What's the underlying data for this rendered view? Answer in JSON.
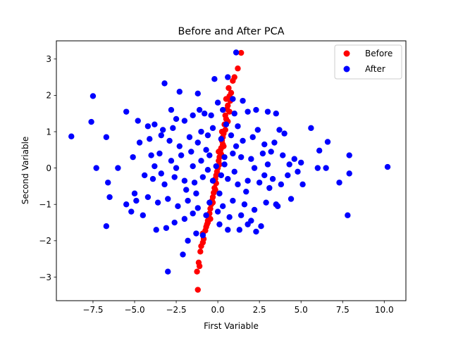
{
  "chart_data": {
    "type": "scatter",
    "title": "Before and After PCA",
    "xlabel": "First Variable",
    "ylabel": "Second Variable",
    "xlim": [
      -9.7,
      11.3
    ],
    "ylim": [
      -3.65,
      3.5
    ],
    "xticks": [
      -7.5,
      -5.0,
      -2.5,
      0.0,
      2.5,
      5.0,
      7.5,
      10.0
    ],
    "xtick_labels": [
      "−7.5",
      "−5.0",
      "−2.5",
      "0.0",
      "2.5",
      "5.0",
      "7.5",
      "10.0"
    ],
    "yticks": [
      -3,
      -2,
      -1,
      0,
      1,
      2,
      3
    ],
    "ytick_labels": [
      "−3",
      "−2",
      "−1",
      "0",
      "1",
      "2",
      "3"
    ],
    "grid": false,
    "legend_position": "top-right",
    "series": [
      {
        "name": "Before",
        "color": "#ff0000",
        "points": [
          [
            1.4,
            3.17
          ],
          [
            1.2,
            2.74
          ],
          [
            1.0,
            2.5
          ],
          [
            0.9,
            2.4
          ],
          [
            0.8,
            2.07
          ],
          [
            0.7,
            1.98
          ],
          [
            0.75,
            1.85
          ],
          [
            0.6,
            1.72
          ],
          [
            0.55,
            1.62
          ],
          [
            0.7,
            1.55
          ],
          [
            0.45,
            1.45
          ],
          [
            0.5,
            1.35
          ],
          [
            0.6,
            1.28
          ],
          [
            0.4,
            1.2
          ],
          [
            0.45,
            1.05
          ],
          [
            0.35,
            0.95
          ],
          [
            0.3,
            0.85
          ],
          [
            0.25,
            0.75
          ],
          [
            0.3,
            0.65
          ],
          [
            0.2,
            0.55
          ],
          [
            0.15,
            0.48
          ],
          [
            0.2,
            0.38
          ],
          [
            0.1,
            0.3
          ],
          [
            0.05,
            0.2
          ],
          [
            0.1,
            0.1
          ],
          [
            0.0,
            0.0
          ],
          [
            -0.05,
            -0.1
          ],
          [
            -0.1,
            -0.2
          ],
          [
            -0.15,
            -0.3
          ],
          [
            -0.1,
            -0.42
          ],
          [
            -0.2,
            -0.55
          ],
          [
            -0.25,
            -0.68
          ],
          [
            -0.3,
            -0.8
          ],
          [
            -0.35,
            -0.9
          ],
          [
            -0.4,
            -1.0
          ],
          [
            -0.45,
            -1.12
          ],
          [
            -0.5,
            -1.25
          ],
          [
            -0.55,
            -1.35
          ],
          [
            -0.6,
            -1.45
          ],
          [
            -0.65,
            -1.55
          ],
          [
            -0.7,
            -1.62
          ],
          [
            -0.75,
            -1.72
          ],
          [
            -0.9,
            -1.8
          ],
          [
            -0.85,
            -1.95
          ],
          [
            -0.9,
            -2.05
          ],
          [
            -1.0,
            -2.15
          ],
          [
            -1.05,
            -2.3
          ],
          [
            -1.15,
            -2.6
          ],
          [
            -1.1,
            -2.7
          ],
          [
            -1.25,
            -2.85
          ],
          [
            -1.2,
            -3.35
          ],
          [
            0.5,
            1.9
          ],
          [
            0.65,
            2.2
          ],
          [
            0.35,
            0.6
          ],
          [
            -0.3,
            -0.95
          ],
          [
            -0.6,
            -1.5
          ],
          [
            0.05,
            0.45
          ],
          [
            -0.45,
            -1.4
          ],
          [
            0.25,
            1.0
          ],
          [
            -0.15,
            -0.6
          ]
        ]
      },
      {
        "name": "After",
        "color": "#0000ff",
        "points": [
          [
            1.1,
            3.18
          ],
          [
            0.6,
            2.5
          ],
          [
            -0.2,
            2.45
          ],
          [
            -7.5,
            1.98
          ],
          [
            -3.2,
            2.33
          ],
          [
            -1.2,
            2.05
          ],
          [
            -2.3,
            2.1
          ],
          [
            0.0,
            1.8
          ],
          [
            1.5,
            1.85
          ],
          [
            -7.6,
            1.27
          ],
          [
            -8.8,
            0.87
          ],
          [
            -6.7,
            0.85
          ],
          [
            -5.5,
            1.55
          ],
          [
            -4.8,
            1.3
          ],
          [
            -4.2,
            1.15
          ],
          [
            -3.8,
            1.2
          ],
          [
            -3.3,
            1.05
          ],
          [
            -2.8,
            1.6
          ],
          [
            -2.5,
            1.35
          ],
          [
            -2.0,
            1.3
          ],
          [
            -1.5,
            1.45
          ],
          [
            -1.1,
            1.6
          ],
          [
            -0.8,
            1.5
          ],
          [
            -0.4,
            1.45
          ],
          [
            0.3,
            1.6
          ],
          [
            1.0,
            1.5
          ],
          [
            1.8,
            1.55
          ],
          [
            2.3,
            1.6
          ],
          [
            3.0,
            1.55
          ],
          [
            3.5,
            1.5
          ],
          [
            4.0,
            0.95
          ],
          [
            3.7,
            1.05
          ],
          [
            5.6,
            1.1
          ],
          [
            6.6,
            0.72
          ],
          [
            6.1,
            0.48
          ],
          [
            7.9,
            0.35
          ],
          [
            10.2,
            0.03
          ],
          [
            -7.3,
            0.0
          ],
          [
            -6.0,
            0.0
          ],
          [
            -6.6,
            -0.4
          ],
          [
            -6.5,
            -0.8
          ],
          [
            -5.0,
            -0.7
          ],
          [
            -5.5,
            -1.0
          ],
          [
            -5.2,
            -1.2
          ],
          [
            -4.5,
            -1.3
          ],
          [
            -6.7,
            -1.6
          ],
          [
            -3.7,
            -1.7
          ],
          [
            -3.1,
            -1.65
          ],
          [
            -2.6,
            -1.5
          ],
          [
            -1.8,
            -2.0
          ],
          [
            -2.1,
            -2.38
          ],
          [
            -3.0,
            -2.85
          ],
          [
            -1.3,
            -1.8
          ],
          [
            -0.9,
            -1.85
          ],
          [
            0.1,
            -1.55
          ],
          [
            0.6,
            -1.7
          ],
          [
            1.3,
            -1.7
          ],
          [
            1.8,
            -1.55
          ],
          [
            2.3,
            -1.75
          ],
          [
            2.6,
            -1.6
          ],
          [
            3.6,
            -1.05
          ],
          [
            4.4,
            -0.85
          ],
          [
            5.1,
            -0.45
          ],
          [
            6.5,
            0.0
          ],
          [
            6.0,
            0.0
          ],
          [
            7.3,
            -0.4
          ],
          [
            7.9,
            -0.15
          ],
          [
            7.8,
            -1.3
          ],
          [
            -5.1,
            0.3
          ],
          [
            -4.0,
            0.35
          ],
          [
            -3.5,
            0.4
          ],
          [
            -2.8,
            0.2
          ],
          [
            -2.2,
            0.35
          ],
          [
            -1.6,
            0.45
          ],
          [
            -1.0,
            0.2
          ],
          [
            -0.5,
            0.35
          ],
          [
            0.4,
            0.3
          ],
          [
            0.9,
            0.4
          ],
          [
            1.4,
            0.3
          ],
          [
            2.0,
            0.25
          ],
          [
            2.7,
            0.4
          ],
          [
            3.2,
            0.45
          ],
          [
            3.9,
            0.35
          ],
          [
            4.6,
            0.25
          ],
          [
            -4.4,
            -0.2
          ],
          [
            -3.9,
            -0.3
          ],
          [
            -3.2,
            -0.45
          ],
          [
            -2.6,
            -0.25
          ],
          [
            -2.0,
            -0.35
          ],
          [
            -1.4,
            -0.4
          ],
          [
            -0.9,
            -0.25
          ],
          [
            -0.3,
            -0.35
          ],
          [
            0.6,
            -0.3
          ],
          [
            1.2,
            -0.45
          ],
          [
            1.8,
            -0.35
          ],
          [
            2.5,
            -0.4
          ],
          [
            3.1,
            -0.55
          ],
          [
            3.8,
            -0.45
          ],
          [
            4.2,
            -0.2
          ],
          [
            -4.7,
            0.7
          ],
          [
            -4.1,
            0.8
          ],
          [
            -3.4,
            0.9
          ],
          [
            -2.9,
            0.75
          ],
          [
            -2.3,
            0.6
          ],
          [
            -1.7,
            0.85
          ],
          [
            -1.2,
            0.7
          ],
          [
            -0.6,
            0.9
          ],
          [
            0.2,
            0.8
          ],
          [
            0.8,
            0.9
          ],
          [
            1.5,
            0.75
          ],
          [
            2.1,
            0.85
          ],
          [
            2.8,
            0.65
          ],
          [
            3.4,
            0.7
          ],
          [
            -4.9,
            -0.9
          ],
          [
            -4.2,
            -0.8
          ],
          [
            -3.6,
            -0.95
          ],
          [
            -3.0,
            -0.85
          ],
          [
            -2.4,
            -1.05
          ],
          [
            -1.8,
            -0.9
          ],
          [
            -1.2,
            -1.1
          ],
          [
            -0.5,
            -0.95
          ],
          [
            0.3,
            -1.05
          ],
          [
            0.9,
            -0.9
          ],
          [
            1.6,
            -1.0
          ],
          [
            2.2,
            -1.15
          ],
          [
            2.9,
            -0.95
          ],
          [
            3.5,
            -1.0
          ],
          [
            -2.0,
            -1.4
          ],
          [
            -1.5,
            -1.25
          ],
          [
            -0.7,
            -1.3
          ],
          [
            0.0,
            -1.2
          ],
          [
            0.7,
            -1.35
          ],
          [
            1.4,
            -1.3
          ],
          [
            2.0,
            -1.45
          ],
          [
            -1.0,
            1.0
          ],
          [
            -0.3,
            1.1
          ],
          [
            0.5,
            1.2
          ],
          [
            1.2,
            1.15
          ],
          [
            2.4,
            1.05
          ],
          [
            -0.1,
            0.05
          ],
          [
            0.4,
            0.1
          ],
          [
            -0.6,
            -0.05
          ],
          [
            1.0,
            -0.1
          ],
          [
            -1.5,
            0.05
          ],
          [
            2.2,
            0.0
          ],
          [
            -2.5,
            0.0
          ],
          [
            3.0,
            0.1
          ],
          [
            4.3,
            0.1
          ],
          [
            5.0,
            0.15
          ],
          [
            -3.8,
            0.05
          ],
          [
            -1.9,
            -0.6
          ],
          [
            0.1,
            -0.7
          ],
          [
            1.7,
            -0.65
          ],
          [
            2.8,
            -0.2
          ],
          [
            -2.7,
            1.1
          ],
          [
            0.9,
            1.9
          ],
          [
            -0.7,
            0.5
          ],
          [
            0.2,
            -0.2
          ],
          [
            1.1,
            0.6
          ],
          [
            -1.3,
            -0.7
          ],
          [
            3.3,
            -0.3
          ],
          [
            -3.4,
            -0.15
          ],
          [
            4.8,
            -0.1
          ]
        ]
      }
    ]
  }
}
